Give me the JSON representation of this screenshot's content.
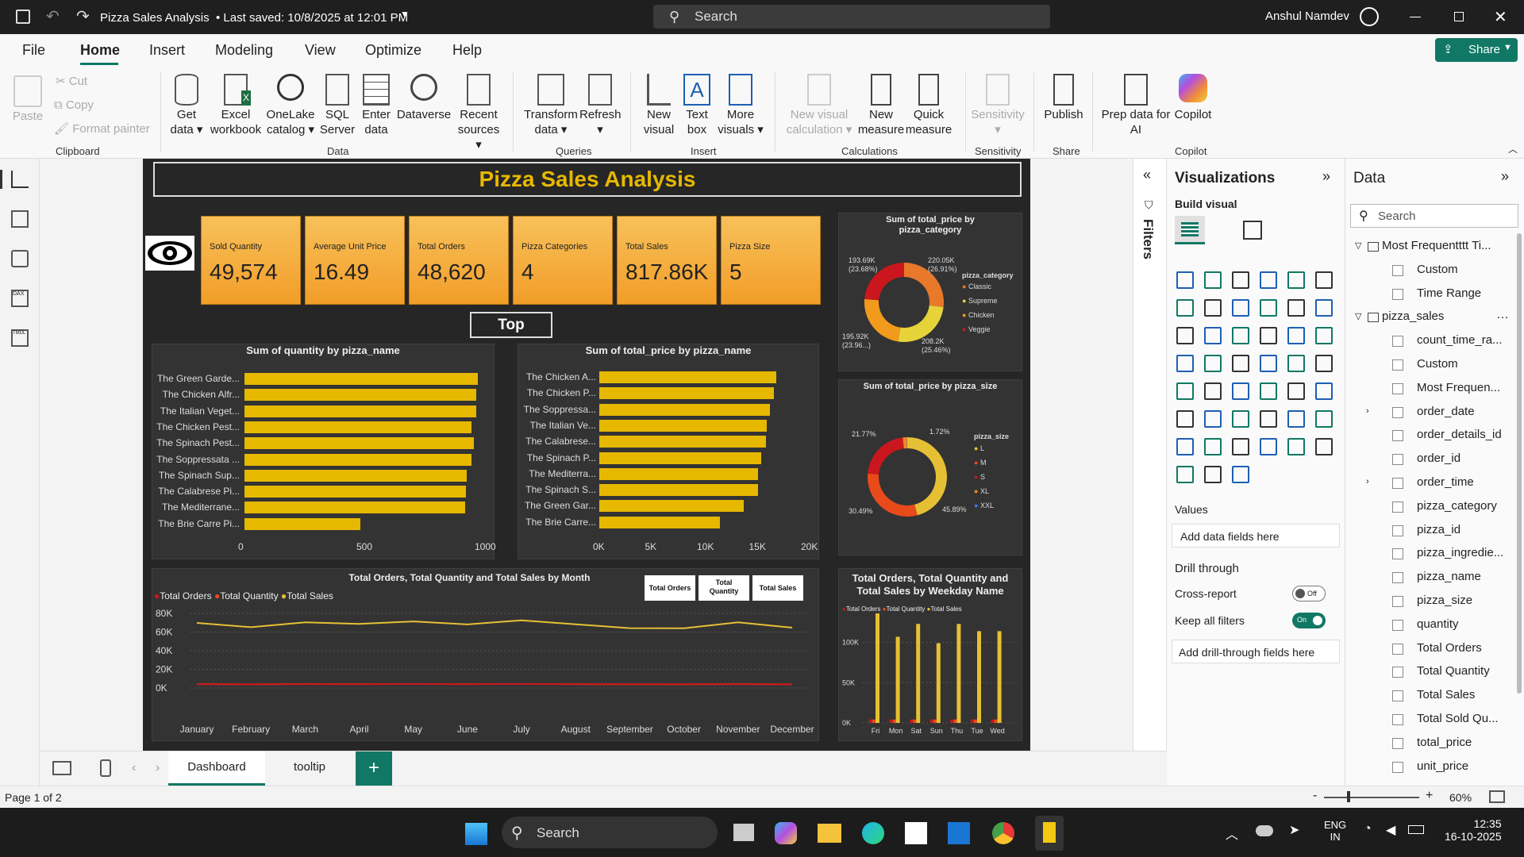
{
  "titlebar": {
    "title": "Pizza Sales Analysis",
    "saved": "• Last saved: 10/8/2025 at 12:01 PM",
    "search": "Search",
    "user": "Anshul Namdev"
  },
  "menu": [
    "File",
    "Home",
    "Insert",
    "Modeling",
    "View",
    "Optimize",
    "Help"
  ],
  "share": "Share",
  "ribbon": {
    "clipboard": {
      "paste": "Paste",
      "cut": "Cut",
      "copy": "Copy",
      "format_painter": "Format painter",
      "group": "Clipboard"
    },
    "data": {
      "get_data": "Get data",
      "excel": "Excel workbook",
      "onelake": "OneLake catalog",
      "sql": "SQL Server",
      "enter": "Enter data",
      "dataverse": "Dataverse",
      "recent": "Recent sources",
      "group": "Data"
    },
    "queries": {
      "transform": "Transform data",
      "refresh": "Refresh",
      "group": "Queries"
    },
    "insert": {
      "new_visual": "New visual",
      "text_box": "Text box",
      "more_visuals": "More visuals",
      "group": "Insert"
    },
    "calculations": {
      "new_visual_calc": "New visual calculation",
      "new_measure": "New measure",
      "quick_measure": "Quick measure",
      "group": "Calculations"
    },
    "sensitivity": {
      "label": "Sensitivity",
      "group": "Sensitivity"
    },
    "share": {
      "publish": "Publish",
      "group": "Share"
    },
    "copilot": {
      "prep": "Prep data for AI",
      "copilot": "Copilot",
      "group": "Copilot"
    }
  },
  "report": {
    "title": "Pizza Sales Analysis",
    "top_button": "Top",
    "cards": [
      {
        "label": "Sold Quantity",
        "value": "49,574"
      },
      {
        "label": "Average Unit Price",
        "value": "16.49"
      },
      {
        "label": "Total Orders",
        "value": "48,620"
      },
      {
        "label": "Pizza Categories",
        "value": "4"
      },
      {
        "label": "Total Sales",
        "value": "817.86K"
      },
      {
        "label": "Pizza Size",
        "value": "5"
      }
    ],
    "qty_chart": {
      "title": "Sum of quantity by pizza_name",
      "labels": [
        "The Green Garde...",
        "The Chicken Alfr...",
        "The Italian Veget...",
        "The Chicken Pest...",
        "The Spinach Pest...",
        "The Soppressata ...",
        "The Spinach Sup...",
        "The Calabrese Pi...",
        "The Mediterrane...",
        "The Brie Carre Pi..."
      ],
      "values": [
        987,
        980,
        981,
        961,
        970,
        961,
        940,
        937,
        934,
        490
      ],
      "ticks": [
        "0",
        "500",
        "1000"
      ],
      "max": 1000
    },
    "price_chart": {
      "title": "Sum of total_price by pizza_name",
      "labels": [
        "The Chicken A...",
        "The Chicken P...",
        "The Soppressa...",
        "The Italian Ve...",
        "The Calabrese...",
        "The Spinach P...",
        "The Mediterra...",
        "The Spinach S...",
        "The Green Gar...",
        "The Brie Carre..."
      ],
      "values": [
        17000,
        16800,
        16400,
        16100,
        16000,
        15600,
        15300,
        15300,
        13900,
        11600
      ],
      "ticks": [
        "0K",
        "5K",
        "10K",
        "15K",
        "20K"
      ],
      "max": 20000
    },
    "category_donut": {
      "title": "Sum of total_price by pizza_category",
      "legend_title": "pizza_category",
      "items": [
        {
          "name": "Classic",
          "value": 220.05,
          "color": "#e8782a"
        },
        {
          "name": "Supreme",
          "value": 208.2,
          "color": "#e6d33a"
        },
        {
          "name": "Chicken",
          "value": 195.92,
          "color": "#f29a1c"
        },
        {
          "name": "Veggie",
          "value": 193.69,
          "color": "#c9171d"
        }
      ],
      "labels": [
        "220.05K",
        "(26.91%)",
        "208.2K",
        "(25.46%)",
        "195.92K",
        "(23.96...)",
        "193.69K",
        "(23.68%)"
      ]
    },
    "size_donut": {
      "title": "Sum of total_price by pizza_size",
      "legend_title": "pizza_size",
      "items": [
        {
          "name": "L",
          "value": 45.89,
          "color": "#e6c034"
        },
        {
          "name": "M",
          "value": 30.49,
          "color": "#e84a1a"
        },
        {
          "name": "S",
          "value": 21.77,
          "color": "#c9171d"
        },
        {
          "name": "XL",
          "value": 1.72,
          "color": "#f08a1c"
        },
        {
          "name": "XXL",
          "value": 0.12,
          "color": "#3b7de6"
        }
      ],
      "labels": [
        "45.89%",
        "30.49%",
        "21.77%",
        "1.72%"
      ]
    },
    "month_chart": {
      "title": "Total Orders, Total Quantity and Total Sales by Month",
      "legend": [
        "Total Orders",
        "Total Quantity",
        "Total Sales"
      ],
      "buttons": [
        "Total Orders",
        "Total Quantity",
        "Total Sales"
      ],
      "months": [
        "January",
        "February",
        "March",
        "April",
        "May",
        "June",
        "July",
        "August",
        "September",
        "October",
        "November",
        "December"
      ],
      "sales": [
        69800,
        65200,
        70400,
        68700,
        71400,
        68200,
        72600,
        68300,
        64200,
        64000,
        70400,
        64700
      ],
      "orders": [
        4100,
        3900,
        4200,
        4200,
        4300,
        4100,
        4300,
        4200,
        4000,
        4000,
        4000,
        3900
      ],
      "quantity": [
        4200,
        3900,
        4300,
        4200,
        4300,
        4100,
        4300,
        4100,
        3900,
        3900,
        4200,
        3900
      ],
      "yticks": [
        "80K",
        "60K",
        "40K",
        "20K",
        "0K"
      ]
    },
    "weekday_chart": {
      "title": "Total Orders, Total Quantity and Total Sales by Weekday Name",
      "legend": [
        "Total Orders",
        "Total Quantity",
        "Total Sales"
      ],
      "days": [
        "Fri",
        "Mon",
        "Sat",
        "Sun",
        "Thu",
        "Tue",
        "Wed"
      ],
      "sales": [
        136000,
        107000,
        123000,
        99000,
        123000,
        114000,
        114000
      ],
      "yticks": [
        "100K",
        "50K",
        "0K"
      ]
    }
  },
  "filters_label": "Filters",
  "viz": {
    "title": "Visualizations",
    "build": "Build visual",
    "values": "Values",
    "add_fields": "Add data fields here",
    "drill": "Drill through",
    "cross": "Cross-report",
    "cross_state": "Off",
    "keep": "Keep all filters",
    "keep_state": "On",
    "add_drill": "Add drill-through fields here"
  },
  "data_pane": {
    "title": "Data",
    "search": "Search",
    "items": [
      "Most Frequentttt Ti...",
      "Custom",
      "Time Range",
      "pizza_sales",
      "count_time_ra...",
      "Custom",
      "Most Frequen...",
      "order_date",
      "order_details_id",
      "order_id",
      "order_time",
      "pizza_category",
      "pizza_id",
      "pizza_ingredie...",
      "pizza_name",
      "pizza_size",
      "quantity",
      "Total Orders",
      "Total Quantity",
      "Total Sales",
      "Total Sold Qu...",
      "total_price",
      "unit_price"
    ]
  },
  "tabs": [
    "Dashboard",
    "tooltip"
  ],
  "status": {
    "page": "Page 1 of 2",
    "zoom": "60%"
  },
  "taskbar": {
    "search": "Search",
    "lang1": "ENG",
    "lang2": "IN",
    "time": "12:35",
    "date": "16-10-2025"
  }
}
